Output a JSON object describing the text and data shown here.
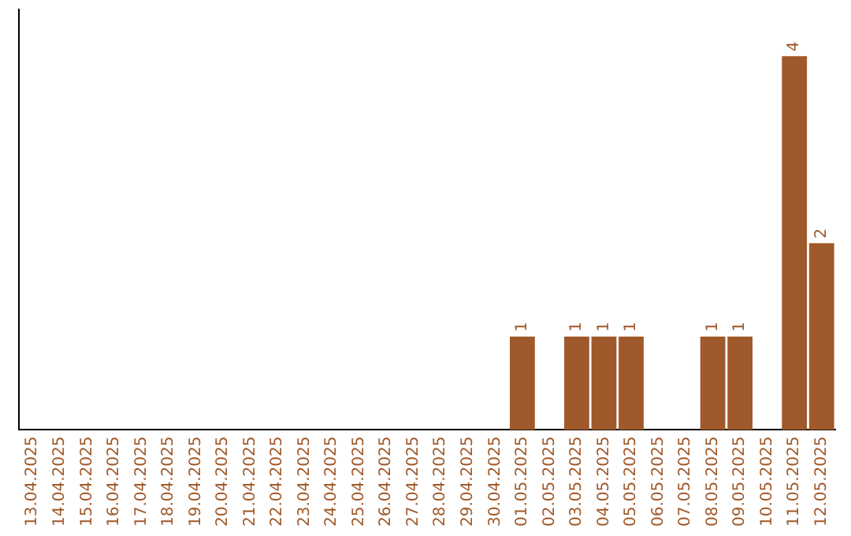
{
  "chart_data": {
    "type": "bar",
    "categories": [
      "13.04.2025",
      "14.04.2025",
      "15.04.2025",
      "16.04.2025",
      "17.04.2025",
      "18.04.2025",
      "19.04.2025",
      "20.04.2025",
      "21.04.2025",
      "22.04.2025",
      "23.04.2025",
      "24.04.2025",
      "25.04.2025",
      "26.04.2025",
      "27.04.2025",
      "28.04.2025",
      "29.04.2025",
      "30.04.2025",
      "01.05.2025",
      "02.05.2025",
      "03.05.2025",
      "04.05.2025",
      "05.05.2025",
      "06.05.2025",
      "07.05.2025",
      "08.05.2025",
      "09.05.2025",
      "10.05.2025",
      "11.05.2025",
      "12.05.2025"
    ],
    "values": [
      null,
      null,
      null,
      null,
      null,
      null,
      null,
      null,
      null,
      null,
      null,
      null,
      null,
      null,
      null,
      null,
      null,
      null,
      1,
      null,
      1,
      1,
      1,
      null,
      null,
      1,
      1,
      null,
      4,
      2
    ],
    "data_labels": true,
    "color": "#a0592a",
    "grid": false,
    "legend": false,
    "tick_labels": "x"
  }
}
